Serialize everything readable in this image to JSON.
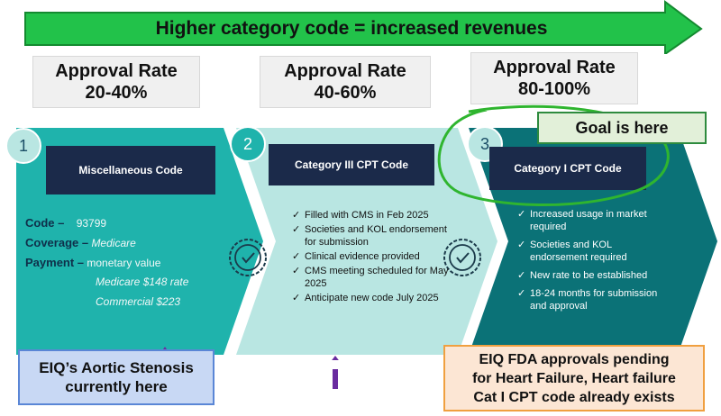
{
  "header": {
    "arrow_text": "Higher category code = increased revenues"
  },
  "rates": [
    {
      "title": "Approval Rate",
      "range": "20-40%"
    },
    {
      "title": "Approval Rate",
      "range": "40-60%"
    },
    {
      "title": "Approval Rate",
      "range": "80-100%"
    }
  ],
  "steps": [
    {
      "number": "1",
      "code_title": "Miscellaneous Code"
    },
    {
      "number": "2",
      "code_title": "Category III CPT Code"
    },
    {
      "number": "3",
      "code_title": "Category I CPT Code"
    }
  ],
  "step1": {
    "code_label": "Code –",
    "code_value": "93799",
    "coverage_label": "Coverage –",
    "coverage_value": "Medicare",
    "payment_label": "Payment –",
    "payment_value": "monetary value",
    "medicare_rate": "Medicare $148 rate",
    "commercial_rate": "Commercial $223"
  },
  "step2": {
    "bullets": [
      "Filled with CMS in Feb 2025",
      "Societies and KOL endorsement for submission",
      "Clinical evidence provided",
      "CMS meeting scheduled for May 2025",
      "Anticipate new code July 2025"
    ]
  },
  "step3": {
    "bullets": [
      "Increased usage in market required",
      "Societies and KOL endorsement required",
      "New rate to be established",
      "18-24 months for submission and approval"
    ]
  },
  "callouts": {
    "goal": "Goal is here",
    "current_line1": "EIQ’s Aortic Stenosis",
    "current_line2": "currently here",
    "pending_line1": "EIQ FDA approvals pending",
    "pending_line2": "for Heart Failure, Heart failure",
    "pending_line3": "Cat I CPT code already exists"
  },
  "colors": {
    "arrow_green": "#22c24a",
    "step1_teal": "#1fb3ac",
    "step2_light": "#b9e6e2",
    "step3_dark": "#0b7277",
    "code_box": "#1b2a4a",
    "goal_circle": "#2fb52f",
    "up_arrow": "#6a2ca0"
  },
  "icons": [
    "check-badge-icon",
    "check-icon",
    "up-arrow-icon"
  ]
}
